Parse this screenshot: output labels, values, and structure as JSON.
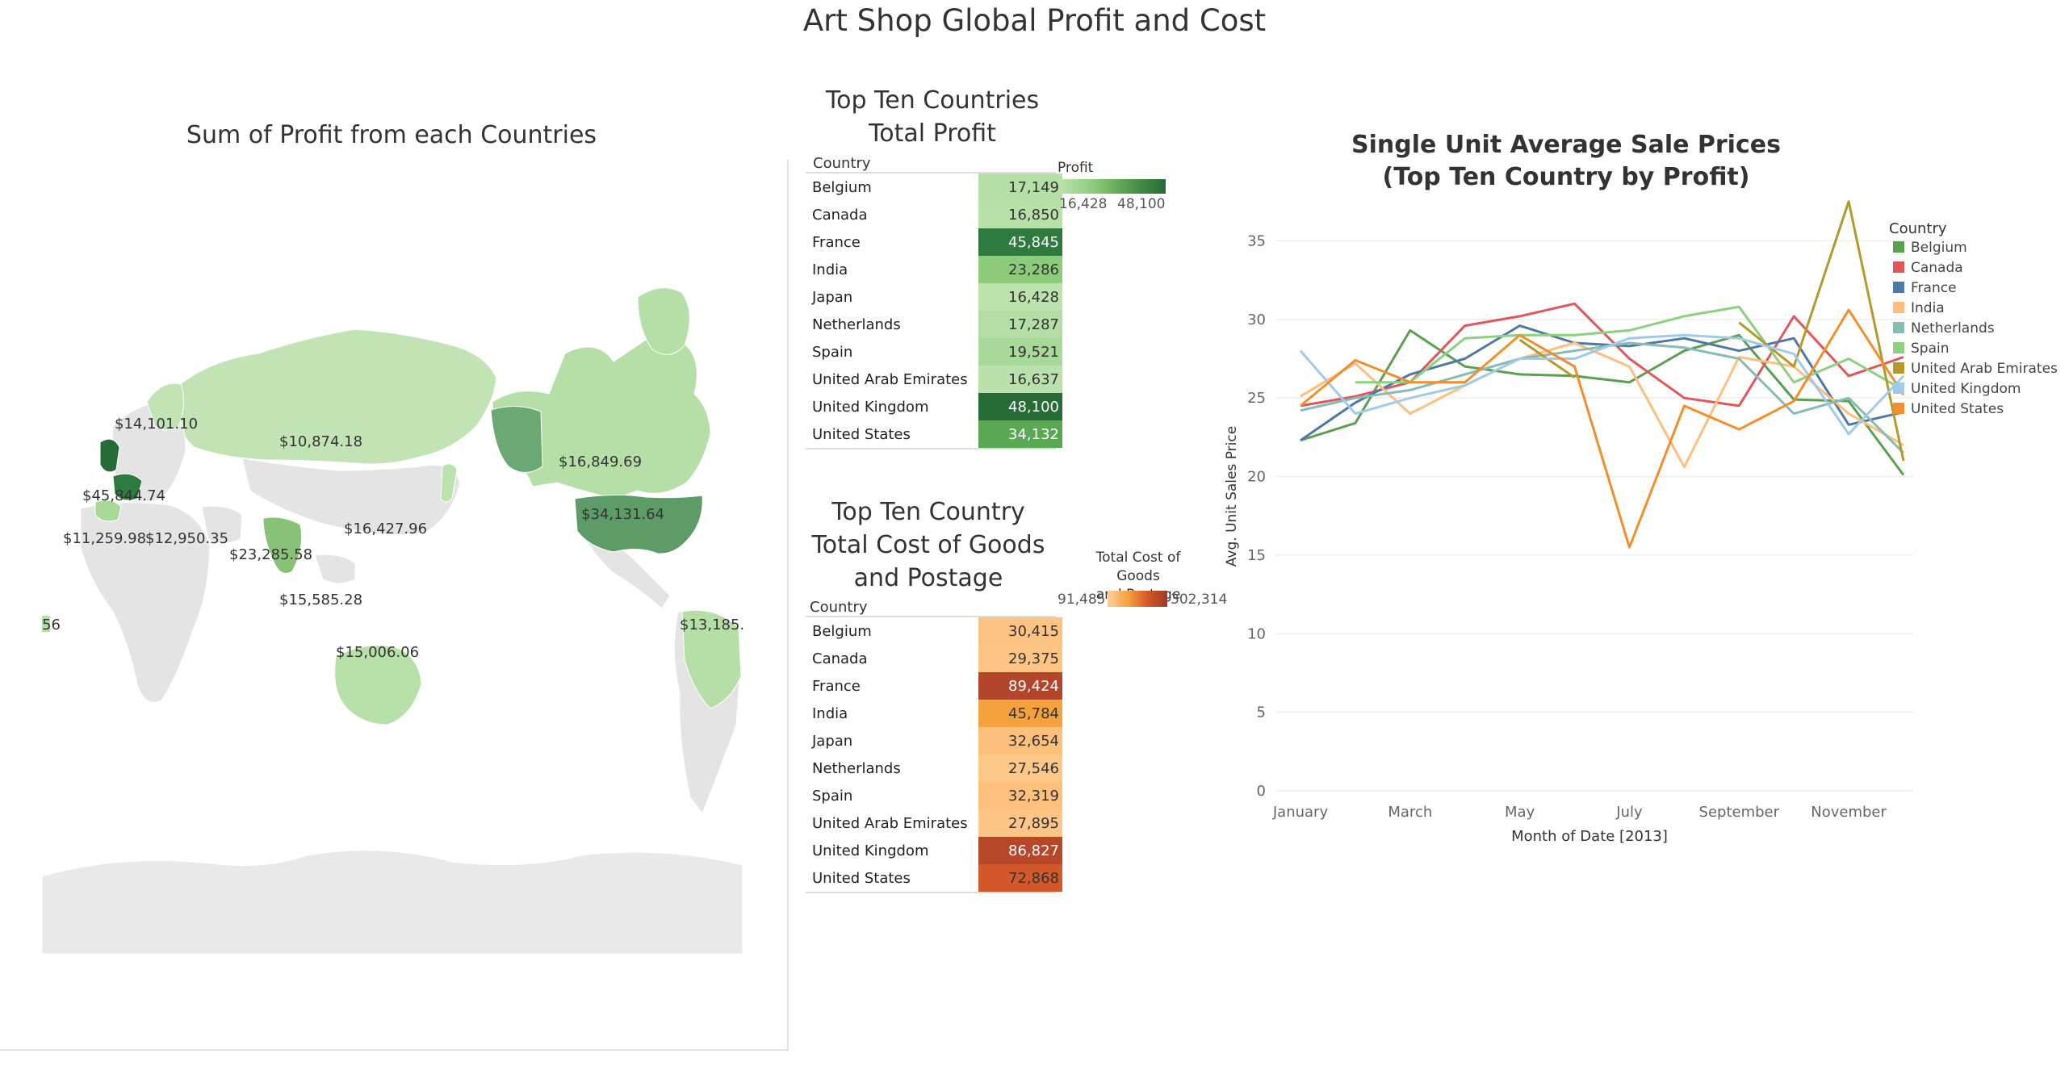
{
  "title": "Art Shop Global Profit and Cost",
  "map": {
    "title": "Sum of Profit from each Countries",
    "labels": [
      {
        "text": "$14,101.10"
      },
      {
        "text": "$10,874.18"
      },
      {
        "text": "$45,844.74"
      },
      {
        "text": "$11,259.98"
      },
      {
        "text": "$12,950.35"
      },
      {
        "text": "$23,285.58"
      },
      {
        "text": "$16,427.96"
      },
      {
        "text": "$16,849.69"
      },
      {
        "text": "$34,131.64"
      },
      {
        "text": "$15,585.28"
      },
      {
        "text": "$15,006.06"
      },
      {
        "text": "$13,185."
      },
      {
        "text": "56"
      }
    ]
  },
  "profit_table": {
    "title_line1": "Top Ten Countries",
    "title_line2": "Total Profit",
    "column_header": "Country",
    "legend_title": "Profit",
    "legend_min": "16,428",
    "legend_max": "48,100",
    "rows": [
      {
        "country": "Belgium",
        "value": "17,149",
        "color": "#b5dfa6"
      },
      {
        "country": "Canada",
        "value": "16,850",
        "color": "#b8e0a9"
      },
      {
        "country": "France",
        "value": "45,845",
        "color": "#2f7a3f"
      },
      {
        "country": "India",
        "value": "23,286",
        "color": "#8bcb7a"
      },
      {
        "country": "Japan",
        "value": "16,428",
        "color": "#bce2ad"
      },
      {
        "country": "Netherlands",
        "value": "17,287",
        "color": "#b4dea5"
      },
      {
        "country": "Spain",
        "value": "19,521",
        "color": "#a8d998"
      },
      {
        "country": "United Arab Emirates",
        "value": "16,637",
        "color": "#bae1ab"
      },
      {
        "country": "United Kingdom",
        "value": "48,100",
        "color": "#276b36"
      },
      {
        "country": "United States",
        "value": "34,132",
        "color": "#5aa853"
      }
    ]
  },
  "cost_table": {
    "title_line1": "Top Ten Country",
    "title_line2": "Total Cost of Goods",
    "title_line3": "and Postage",
    "column_header": "Country",
    "legend_title_line1": "Total Cost of Goods",
    "legend_title_line2": "and Postage",
    "legend_min": "91,485",
    "legend_max": "302,314",
    "rows": [
      {
        "country": "Belgium",
        "value": "30,415",
        "color": "#fdc382"
      },
      {
        "country": "Canada",
        "value": "29,375",
        "color": "#fdc484"
      },
      {
        "country": "France",
        "value": "89,424",
        "color": "#b2452a"
      },
      {
        "country": "India",
        "value": "45,784",
        "color": "#f3a23d"
      },
      {
        "country": "Japan",
        "value": "32,654",
        "color": "#fdc07c"
      },
      {
        "country": "Netherlands",
        "value": "27,546",
        "color": "#fdc787"
      },
      {
        "country": "Spain",
        "value": "32,319",
        "color": "#fdc07d"
      },
      {
        "country": "United Arab Emirates",
        "value": "27,895",
        "color": "#fdc686"
      },
      {
        "country": "United Kingdom",
        "value": "86,827",
        "color": "#b8472a"
      },
      {
        "country": "United States",
        "value": "72,868",
        "color": "#d4592a"
      }
    ]
  },
  "chart_data": {
    "type": "line",
    "title_line1": "Single Unit Average Sale Prices",
    "title_line2": "(Top Ten Country by Profit)",
    "xlabel": "Month of Date [2013]",
    "ylabel": "Avg. Unit Sales Price",
    "x_tick_labels": [
      "January",
      "March",
      "May",
      "July",
      "September",
      "November"
    ],
    "y_ticks": [
      "0",
      "5",
      "10",
      "15",
      "20",
      "25",
      "30",
      "35"
    ],
    "ylim": [
      0,
      38
    ],
    "legend_title": "Country",
    "legend_position": "top-right",
    "x": [
      1,
      2,
      3,
      4,
      5,
      6,
      7,
      8,
      9,
      10,
      11,
      12
    ],
    "series": [
      {
        "name": "Belgium",
        "color": "#59a14f",
        "values": [
          22.3,
          23.4,
          29.3,
          27.0,
          26.5,
          26.4,
          26.0,
          28.0,
          29.0,
          24.9,
          24.8,
          20.1
        ]
      },
      {
        "name": "Canada",
        "color": "#e15759",
        "values": [
          24.5,
          25.1,
          26.0,
          29.6,
          30.2,
          31.0,
          27.5,
          25.0,
          24.5,
          30.2,
          26.4,
          27.6
        ]
      },
      {
        "name": "France",
        "color": "#4e79a7",
        "values": [
          22.3,
          24.7,
          26.5,
          27.5,
          29.6,
          28.5,
          28.3,
          28.8,
          28.0,
          28.8,
          23.3,
          24.1
        ]
      },
      {
        "name": "India",
        "color": "#ffbe7d",
        "values": [
          25.1,
          27.2,
          24.0,
          25.8,
          27.5,
          28.5,
          27.0,
          20.6,
          27.6,
          27.0,
          24.0,
          22.0
        ]
      },
      {
        "name": "Netherlands",
        "color": "#86bcb6",
        "values": [
          24.2,
          25.0,
          25.5,
          26.5,
          27.5,
          28.0,
          28.5,
          28.2,
          27.5,
          24.0,
          25.0,
          21.5
        ]
      },
      {
        "name": "Spain",
        "color": "#8cd17d",
        "values": [
          null,
          26.0,
          26.0,
          28.8,
          29.0,
          29.0,
          29.3,
          30.2,
          30.8,
          26.0,
          27.5,
          25.5
        ]
      },
      {
        "name": "United Arab Emirates",
        "color": "#b6992d",
        "values": [
          null,
          null,
          null,
          null,
          28.7,
          26.3,
          null,
          null,
          29.8,
          27.0,
          37.5,
          21.0
        ]
      },
      {
        "name": "United Kingdom",
        "color": "#a0cbe8",
        "values": [
          28.0,
          24.0,
          25.0,
          25.8,
          27.5,
          27.5,
          28.8,
          29.0,
          28.8,
          27.8,
          22.7,
          26.4
        ]
      },
      {
        "name": "United States",
        "color": "#f28e2b",
        "values": [
          24.5,
          27.4,
          26.0,
          26.0,
          29.0,
          27.0,
          15.5,
          24.5,
          23.0,
          24.8,
          30.6,
          25.2
        ]
      }
    ]
  }
}
